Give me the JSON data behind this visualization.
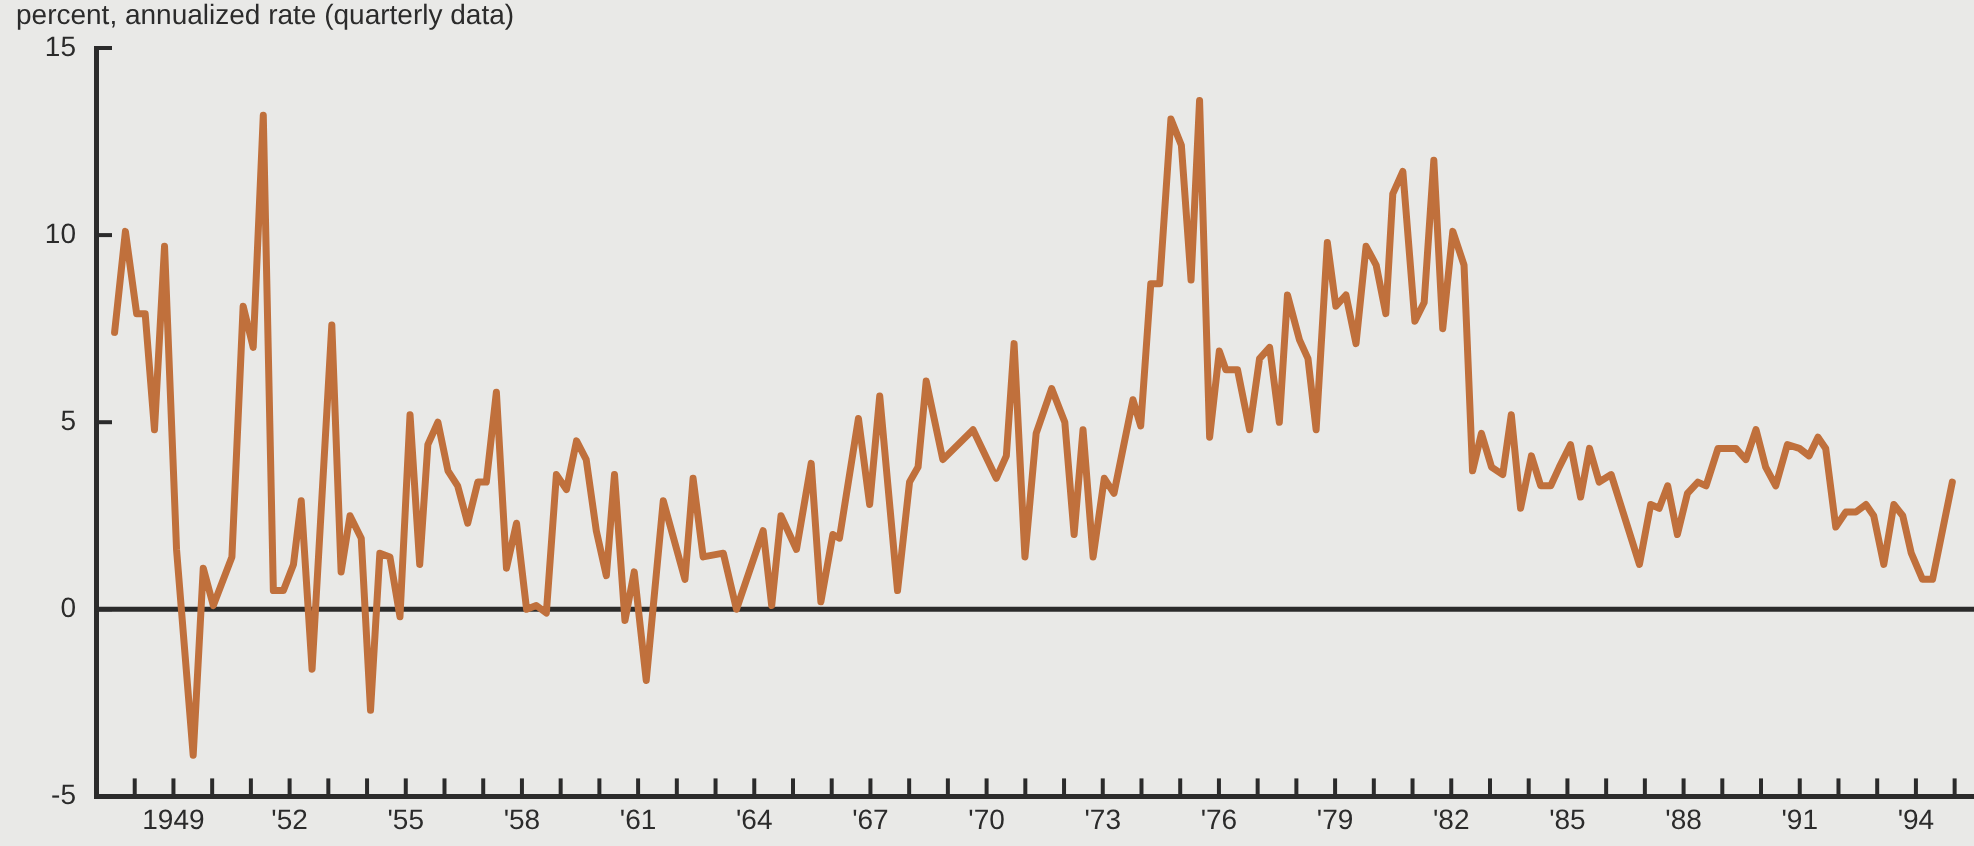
{
  "chart_data": {
    "type": "line",
    "ylabel": "percent, annualized rate (quarterly data)",
    "xlim": [
      1947,
      1995.5
    ],
    "ylim": [
      -5,
      15
    ],
    "yticks": [
      -5,
      0,
      5,
      10,
      15
    ],
    "xticks": [
      {
        "value": 1947,
        "label": null
      },
      {
        "value": 1948,
        "label": null
      },
      {
        "value": 1949,
        "label": "1949"
      },
      {
        "value": 1950,
        "label": null
      },
      {
        "value": 1951,
        "label": null
      },
      {
        "value": 1952,
        "label": "'52"
      },
      {
        "value": 1953,
        "label": null
      },
      {
        "value": 1954,
        "label": null
      },
      {
        "value": 1955,
        "label": "'55"
      },
      {
        "value": 1956,
        "label": null
      },
      {
        "value": 1957,
        "label": null
      },
      {
        "value": 1958,
        "label": "'58"
      },
      {
        "value": 1959,
        "label": null
      },
      {
        "value": 1960,
        "label": null
      },
      {
        "value": 1961,
        "label": "'61"
      },
      {
        "value": 1962,
        "label": null
      },
      {
        "value": 1963,
        "label": null
      },
      {
        "value": 1964,
        "label": "'64"
      },
      {
        "value": 1965,
        "label": null
      },
      {
        "value": 1966,
        "label": null
      },
      {
        "value": 1967,
        "label": "'67"
      },
      {
        "value": 1968,
        "label": null
      },
      {
        "value": 1969,
        "label": null
      },
      {
        "value": 1970,
        "label": "'70"
      },
      {
        "value": 1971,
        "label": null
      },
      {
        "value": 1972,
        "label": null
      },
      {
        "value": 1973,
        "label": "'73"
      },
      {
        "value": 1974,
        "label": null
      },
      {
        "value": 1975,
        "label": null
      },
      {
        "value": 1976,
        "label": "'76"
      },
      {
        "value": 1977,
        "label": null
      },
      {
        "value": 1978,
        "label": null
      },
      {
        "value": 1979,
        "label": "'79"
      },
      {
        "value": 1980,
        "label": null
      },
      {
        "value": 1981,
        "label": null
      },
      {
        "value": 1982,
        "label": "'82"
      },
      {
        "value": 1983,
        "label": null
      },
      {
        "value": 1984,
        "label": null
      },
      {
        "value": 1985,
        "label": "'85"
      },
      {
        "value": 1986,
        "label": null
      },
      {
        "value": 1987,
        "label": null
      },
      {
        "value": 1988,
        "label": "'88"
      },
      {
        "value": 1989,
        "label": null
      },
      {
        "value": 1990,
        "label": null
      },
      {
        "value": 1991,
        "label": "'91"
      },
      {
        "value": 1992,
        "label": null
      },
      {
        "value": 1993,
        "label": null
      },
      {
        "value": 1994,
        "label": "'94"
      },
      {
        "value": 1995,
        "label": null
      }
    ],
    "grid": false,
    "legend": false,
    "marker": "none",
    "line_style": "solid",
    "ref_lines": [
      {
        "axis": "y",
        "value": 0,
        "color": "#2b2b2b"
      }
    ],
    "series": [
      {
        "color": "#c0703c",
        "x": [
          1947.48,
          1947.76,
          1948.05,
          1948.27,
          1948.51,
          1948.77,
          1949.08,
          1949.51,
          1949.77,
          1950.03,
          1950.51,
          1950.8,
          1951.06,
          1951.32,
          1951.58,
          1951.84,
          1952.1,
          1952.3,
          1952.58,
          1953.09,
          1953.33,
          1953.56,
          1953.85,
          1954.09,
          1954.33,
          1954.59,
          1954.85,
          1955.11,
          1955.36,
          1955.57,
          1955.83,
          1956.09,
          1956.34,
          1956.6,
          1956.86,
          1957.08,
          1957.34,
          1957.6,
          1957.86,
          1958.12,
          1958.37,
          1958.63,
          1958.89,
          1959.15,
          1959.41,
          1959.66,
          1959.92,
          1960.18,
          1960.39,
          1960.66,
          1960.9,
          1961.21,
          1961.65,
          1962.21,
          1962.42,
          1962.68,
          1963.2,
          1963.54,
          1964.23,
          1964.45,
          1964.69,
          1965.09,
          1965.47,
          1965.72,
          1966.03,
          1966.2,
          1966.69,
          1966.98,
          1967.24,
          1967.7,
          1968.01,
          1968.23,
          1968.44,
          1968.87,
          1969.65,
          1970.25,
          1970.51,
          1970.71,
          1970.99,
          1971.28,
          1971.68,
          1972.02,
          1972.26,
          1972.49,
          1972.75,
          1973.04,
          1973.29,
          1973.78,
          1973.98,
          1974.24,
          1974.47,
          1974.76,
          1975.03,
          1975.28,
          1975.5,
          1975.76,
          1976.01,
          1976.18,
          1976.48,
          1976.79,
          1977.05,
          1977.31,
          1977.56,
          1977.77,
          1978.08,
          1978.3,
          1978.51,
          1978.8,
          1979.02,
          1979.28,
          1979.54,
          1979.8,
          1980.06,
          1980.31,
          1980.49,
          1980.75,
          1981.06,
          1981.3,
          1981.55,
          1981.78,
          1982.04,
          1982.33,
          1982.55,
          1982.78,
          1983.04,
          1983.33,
          1983.55,
          1983.79,
          1984.07,
          1984.31,
          1984.57,
          1984.79,
          1985.08,
          1985.34,
          1985.57,
          1985.82,
          1986.13,
          1986.86,
          1987.15,
          1987.37,
          1987.59,
          1987.84,
          1988.1,
          1988.37,
          1988.58,
          1988.89,
          1989.35,
          1989.61,
          1989.87,
          1990.12,
          1990.38,
          1990.68,
          1990.99,
          1991.24,
          1991.47,
          1991.67,
          1991.93,
          1992.19,
          1992.45,
          1992.71,
          1992.91,
          1993.17,
          1993.43,
          1993.66,
          1993.88,
          1994.17,
          1994.43,
          1994.94
        ],
        "values": [
          7.4,
          10.1,
          7.9,
          7.9,
          4.8,
          9.7,
          1.6,
          -3.9,
          1.1,
          0.1,
          1.4,
          8.1,
          7,
          13.2,
          0.5,
          0.5,
          1.2,
          2.9,
          -1.6,
          7.6,
          1,
          2.5,
          1.9,
          -2.7,
          1.5,
          1.4,
          -0.2,
          5.2,
          1.2,
          4.4,
          5,
          3.7,
          3.3,
          2.3,
          3.4,
          3.4,
          5.8,
          1.1,
          2.3,
          0,
          0.1,
          -0.1,
          3.6,
          3.2,
          4.5,
          4,
          2.1,
          0.9,
          3.6,
          -0.3,
          1,
          -1.9,
          2.9,
          0.8,
          3.5,
          1.4,
          1.5,
          0,
          2.1,
          0.1,
          2.5,
          1.6,
          3.9,
          0.2,
          2,
          1.9,
          5.1,
          2.8,
          5.7,
          0.5,
          3.4,
          3.8,
          6.1,
          4,
          4.8,
          3.5,
          4.1,
          7.1,
          1.4,
          4.7,
          5.9,
          5,
          2,
          4.8,
          1.4,
          3.5,
          3.1,
          5.6,
          4.9,
          8.7,
          8.7,
          13.1,
          12.4,
          8.8,
          13.6,
          4.6,
          6.9,
          6.4,
          6.4,
          4.8,
          6.7,
          7,
          5,
          8.4,
          7.2,
          6.7,
          4.8,
          9.8,
          8.1,
          8.4,
          7.1,
          9.7,
          9.2,
          7.9,
          11.1,
          11.7,
          7.7,
          8.2,
          12,
          7.5,
          10.1,
          9.2,
          3.7,
          4.7,
          3.8,
          3.6,
          5.2,
          2.7,
          4.1,
          3.3,
          3.3,
          3.8,
          4.4,
          3,
          4.3,
          3.4,
          3.6,
          1.2,
          2.8,
          2.7,
          3.3,
          2,
          3.1,
          3.4,
          3.3,
          4.3,
          4.3,
          4,
          4.8,
          3.8,
          3.3,
          4.4,
          4.3,
          4.1,
          4.6,
          4.3,
          2.2,
          2.6,
          2.6,
          2.8,
          2.5,
          1.2,
          2.8,
          2.5,
          1.5,
          0.8,
          0.8,
          3.4
        ]
      }
    ]
  }
}
